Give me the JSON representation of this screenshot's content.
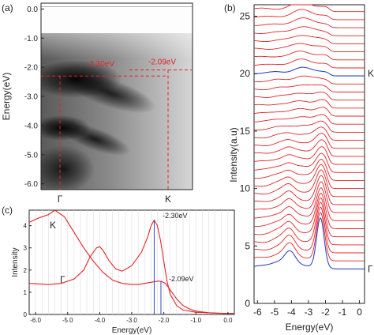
{
  "figure": {
    "panels": [
      {
        "label": "(a)",
        "ylabel": "Energy(eV)",
        "yticks": [
          "0.0",
          "-1.0",
          "-2.0",
          "-3.0",
          "-4.0",
          "-5.0",
          "-6.0"
        ],
        "xticks": [
          "Γ",
          "K"
        ],
        "annotations": [
          "-2.30eV",
          "-2.09eV"
        ]
      },
      {
        "label": "(b)",
        "ylabel": "Intensity(a.u)",
        "xlabel": "Energy(eV)",
        "yticks": [
          "0",
          "5",
          "10",
          "15",
          "20",
          "25"
        ],
        "xticks": [
          "-6",
          "-5",
          "-4",
          "-3",
          "-2",
          "-1",
          "0"
        ],
        "curve_labels": [
          "K",
          "Γ"
        ]
      },
      {
        "label": "(c)",
        "ylabel": "Intensity",
        "xlabel": "Energy(eV)",
        "yticks": [
          "0",
          "1",
          "2",
          "3",
          "4"
        ],
        "xticks": [
          "-6.0",
          "-5.0",
          "-4.0",
          "-3.0",
          "-2.0",
          "-1.0",
          "0.0"
        ],
        "curve_labels": [
          "K",
          "Γ"
        ],
        "annotations": [
          "-2.30eV",
          "-2.09eV"
        ]
      }
    ]
  },
  "chart_data": [
    {
      "type": "heatmap",
      "panel": "(a)",
      "ylim": [
        -6.2,
        0.2
      ],
      "yticks": [
        0,
        -1,
        -2,
        -3,
        -4,
        -5,
        -6
      ],
      "x": [
        "Γ",
        "K"
      ],
      "markers": [
        {
          "label": "-2.30eV",
          "at": "Γ",
          "y": -2.3
        },
        {
          "label": "-2.09eV",
          "at": "K",
          "y": -2.09
        }
      ]
    },
    {
      "type": "line",
      "panel": "(b)",
      "xlim": [
        -6.2,
        0.3
      ],
      "ylim": [
        0,
        26
      ],
      "n_curves": 33,
      "offset_step": 0.7,
      "highlighted": [
        {
          "label": "Γ",
          "index": 0
        },
        {
          "label": "K",
          "index": 24
        }
      ],
      "labeled_offsets": [
        {
          "label": "Γ",
          "y": 3
        },
        {
          "label": "K",
          "y": 20
        }
      ]
    },
    {
      "type": "line",
      "panel": "(c)",
      "xlim": [
        -6.2,
        0.2
      ],
      "ylim": [
        0,
        4.7
      ],
      "series": [
        {
          "name": "K",
          "x": [
            -6.2,
            -5.9,
            -5.6,
            -5.4,
            -5.1,
            -4.8,
            -4.5,
            -4.2,
            -3.9,
            -3.6,
            -3.3,
            -3.0,
            -2.8,
            -2.6,
            -2.4,
            -2.2,
            -2.09,
            -1.95,
            -1.8,
            -1.6,
            -1.4,
            -1.2,
            -1.0,
            -0.6,
            -0.2,
            0.2
          ],
          "y": [
            4.15,
            4.35,
            4.5,
            4.7,
            4.4,
            3.7,
            3.0,
            2.4,
            1.9,
            1.55,
            1.4,
            1.35,
            1.35,
            1.4,
            1.45,
            1.5,
            1.5,
            1.4,
            1.1,
            0.7,
            0.4,
            0.25,
            0.15,
            0.08,
            0.05,
            0.05
          ]
        },
        {
          "name": "Γ",
          "x": [
            -6.2,
            -5.6,
            -5.2,
            -4.8,
            -4.5,
            -4.3,
            -4.1,
            -4.0,
            -3.9,
            -3.7,
            -3.5,
            -3.3,
            -3.0,
            -2.7,
            -2.5,
            -2.4,
            -2.3,
            -2.2,
            -2.1,
            -2.0,
            -1.9,
            -1.8,
            -1.6,
            -1.4,
            -1.0,
            -0.6,
            -0.2,
            0.2
          ],
          "y": [
            1.4,
            1.35,
            1.4,
            1.6,
            2.0,
            2.6,
            3.0,
            3.05,
            2.9,
            2.4,
            2.05,
            1.95,
            2.2,
            2.8,
            3.5,
            4.0,
            4.25,
            4.0,
            3.3,
            2.4,
            1.5,
            0.9,
            0.4,
            0.2,
            0.1,
            0.07,
            0.05,
            0.05
          ]
        }
      ],
      "vlines": [
        {
          "label": "-2.30eV",
          "x": -2.3,
          "y": 4.25
        },
        {
          "label": "-2.09eV",
          "x": -2.09,
          "y": 1.5
        }
      ]
    }
  ]
}
